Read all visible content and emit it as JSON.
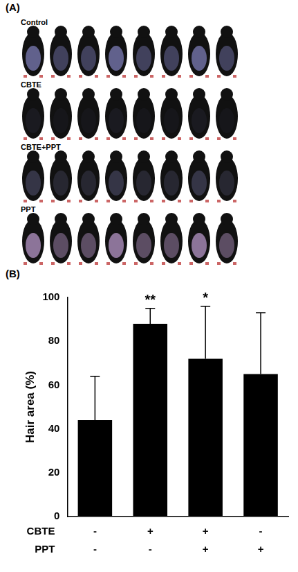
{
  "panel_a": {
    "label": "(A)",
    "groups": [
      "Control",
      "CBTE",
      "CBTE+PPT",
      "PPT"
    ]
  },
  "chart_data": {
    "type": "bar",
    "panel": "(B)",
    "y_label": "Hair area (%)",
    "categories": [
      [
        "-",
        "-"
      ],
      [
        "+",
        "-"
      ],
      [
        "+",
        "+"
      ],
      [
        "-",
        "+"
      ]
    ],
    "x_row_labels": [
      "CBTE",
      "PPT"
    ],
    "values": [
      44,
      88,
      72,
      65
    ],
    "errors": [
      20,
      7,
      24,
      28
    ],
    "significance": [
      null,
      "**",
      "*",
      null
    ],
    "color": "#000000",
    "ylim": [
      0,
      100
    ],
    "yticks": [
      0,
      20,
      40,
      60,
      80,
      100
    ],
    "grid": false
  }
}
